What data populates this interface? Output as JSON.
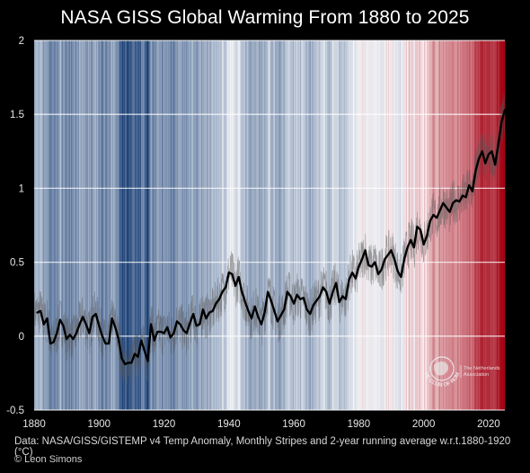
{
  "title": "NASA GISS Global Warming From 1880 to 2025",
  "caption": "Data: NASA/GISS/GISTEMP v4 Temp Anomaly, Monthly Stripes and 2-year running average w.r.t.1880-1920 (°C)",
  "credit": "© Leon Simons",
  "logo": {
    "ring_text": "THE CLUB OF ROME",
    "side_text": [
      "The Netherlands",
      "Association"
    ]
  },
  "chart_data": {
    "type": "line",
    "title": "NASA GISS Global Warming From 1880 to 2025",
    "xlabel": "",
    "ylabel": "",
    "xlim": [
      1880,
      2025
    ],
    "ylim": [
      -0.5,
      2
    ],
    "xticks": [
      1880,
      1900,
      1920,
      1940,
      1960,
      1980,
      2000,
      2020
    ],
    "yticks": [
      -0.5,
      0,
      0.5,
      1,
      1.5,
      2
    ],
    "grid": true,
    "background": "monthly warming stripes",
    "series": [
      {
        "color": "#000000",
        "x": [
          1881,
          1882,
          1883,
          1884,
          1885,
          1886,
          1887,
          1888,
          1889,
          1890,
          1891,
          1892,
          1893,
          1894,
          1895,
          1896,
          1897,
          1898,
          1899,
          1900,
          1901,
          1902,
          1903,
          1904,
          1905,
          1906,
          1907,
          1908,
          1909,
          1910,
          1911,
          1912,
          1913,
          1914,
          1915,
          1916,
          1917,
          1918,
          1919,
          1920,
          1921,
          1922,
          1923,
          1924,
          1925,
          1926,
          1927,
          1928,
          1929,
          1930,
          1931,
          1932,
          1933,
          1934,
          1935,
          1936,
          1937,
          1938,
          1939,
          1940,
          1941,
          1942,
          1943,
          1944,
          1945,
          1946,
          1947,
          1948,
          1949,
          1950,
          1951,
          1952,
          1953,
          1954,
          1955,
          1956,
          1957,
          1958,
          1959,
          1960,
          1961,
          1962,
          1963,
          1964,
          1965,
          1966,
          1967,
          1968,
          1969,
          1970,
          1971,
          1972,
          1973,
          1974,
          1975,
          1976,
          1977,
          1978,
          1979,
          1980,
          1981,
          1982,
          1983,
          1984,
          1985,
          1986,
          1987,
          1988,
          1989,
          1990,
          1991,
          1992,
          1993,
          1994,
          1995,
          1996,
          1997,
          1998,
          1999,
          2000,
          2001,
          2002,
          2003,
          2004,
          2005,
          2006,
          2007,
          2008,
          2009,
          2010,
          2011,
          2012,
          2013,
          2014,
          2015,
          2016,
          2017,
          2018,
          2019,
          2020,
          2021,
          2022,
          2023,
          2024,
          2025
        ],
        "y": [
          0.16,
          0.17,
          0.08,
          0.12,
          -0.05,
          -0.04,
          0.02,
          0.11,
          0.07,
          -0.02,
          0.01,
          -0.02,
          0.02,
          0.08,
          0.13,
          0.08,
          0.02,
          0.13,
          0.15,
          0.07,
          0.0,
          -0.05,
          -0.05,
          0.12,
          0.06,
          -0.02,
          -0.15,
          -0.19,
          -0.18,
          -0.18,
          -0.12,
          -0.14,
          -0.03,
          -0.1,
          -0.17,
          0.08,
          -0.03,
          0.03,
          0.03,
          0.02,
          0.06,
          -0.01,
          0.02,
          0.1,
          0.08,
          0.04,
          0.02,
          0.09,
          0.15,
          0.07,
          0.08,
          0.18,
          0.12,
          0.16,
          0.17,
          0.22,
          0.25,
          0.3,
          0.33,
          0.43,
          0.42,
          0.34,
          0.4,
          0.3,
          0.23,
          0.17,
          0.12,
          0.2,
          0.13,
          0.08,
          0.16,
          0.3,
          0.24,
          0.17,
          0.1,
          0.14,
          0.18,
          0.3,
          0.27,
          0.22,
          0.28,
          0.25,
          0.26,
          0.18,
          0.15,
          0.21,
          0.24,
          0.27,
          0.33,
          0.3,
          0.22,
          0.3,
          0.36,
          0.23,
          0.27,
          0.25,
          0.38,
          0.43,
          0.39,
          0.47,
          0.52,
          0.58,
          0.48,
          0.47,
          0.5,
          0.42,
          0.45,
          0.52,
          0.55,
          0.58,
          0.52,
          0.44,
          0.4,
          0.52,
          0.6,
          0.65,
          0.6,
          0.74,
          0.72,
          0.62,
          0.68,
          0.78,
          0.82,
          0.8,
          0.85,
          0.9,
          0.87,
          0.84,
          0.9,
          0.92,
          0.91,
          0.95,
          0.94,
          1.02,
          0.98,
          1.12,
          1.2,
          1.25,
          1.17,
          1.23,
          1.25,
          1.16,
          1.3,
          1.45,
          1.53
        ]
      }
    ]
  }
}
